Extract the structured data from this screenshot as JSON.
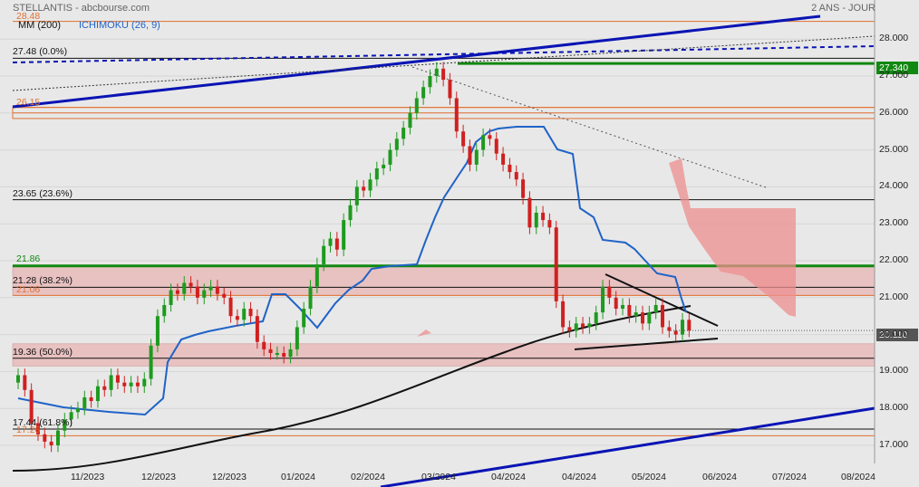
{
  "header": {
    "title": "STELLANTIS - abcbourse.com",
    "period": "2 ANS - JOUR",
    "legend_ma": "MM (200)",
    "legend_ichimoku": "ICHIMOKU (26, 9)"
  },
  "colors": {
    "up": "#1e9a1e",
    "down": "#d02020",
    "ichimoku": "#1f63c8",
    "ma": "#111111",
    "trend": "#0a14b4",
    "green_level": "#118811",
    "band": "#e8b5b5",
    "cloud": "#ee8f8f"
  },
  "price_tags": {
    "last": "20.110",
    "green": "27.340"
  },
  "chart_data": {
    "type": "candlestick",
    "y_ticks": [
      "28.000",
      "27.000",
      "26.000",
      "25.000",
      "24.000",
      "23.000",
      "22.000",
      "21.000",
      "20.000",
      "19.000",
      "18.000",
      "17.000"
    ],
    "x_ticks": [
      "11/2023",
      "12/2023",
      "12/2023",
      "01/2024",
      "02/2024",
      "03/2024",
      "04/2024",
      "04/2024",
      "05/2024",
      "06/2024",
      "07/2024",
      "08/2024"
    ],
    "levels": [
      {
        "label": "27.48  (0.0%)",
        "value": 27.48
      },
      {
        "label": "23.65  (23.6%)",
        "value": 23.65
      },
      {
        "label": "21.28  (38.2%)",
        "value": 21.28
      },
      {
        "label": "19.36  (50.0%)",
        "value": 19.36
      },
      {
        "label": "17.44  (61.8%)",
        "value": 17.44
      }
    ],
    "orange_labels": [
      "28.48",
      "26.15",
      "21.06",
      "17.26"
    ],
    "green_label": "21.86",
    "last_price": 20.11,
    "closes": [
      18.9,
      18.5,
      17.6,
      17.3,
      17.1,
      17.0,
      17.4,
      17.7,
      17.9,
      18.0,
      18.3,
      18.2,
      18.6,
      18.5,
      18.9,
      18.7,
      18.6,
      18.7,
      18.6,
      18.8,
      19.7,
      20.5,
      20.8,
      21.2,
      21.1,
      21.4,
      21.3,
      21.0,
      21.2,
      21.3,
      21.1,
      21.0,
      20.5,
      20.4,
      20.7,
      20.5,
      19.8,
      19.6,
      19.5,
      19.5,
      19.4,
      19.6,
      20.2,
      20.7,
      21.3,
      21.9,
      22.4,
      22.6,
      22.3,
      23.1,
      23.5,
      24.0,
      23.9,
      24.2,
      24.5,
      24.6,
      25.0,
      25.3,
      25.6,
      26.0,
      26.4,
      26.7,
      27.0,
      27.2,
      26.9,
      26.4,
      25.5,
      25.1,
      24.6,
      25.0,
      25.4,
      25.3,
      24.9,
      24.6,
      24.4,
      24.2,
      23.7,
      22.9,
      23.3,
      23.1,
      22.9,
      20.9,
      20.2,
      20.1,
      20.3,
      20.2,
      20.3,
      20.6,
      21.3,
      21.0,
      20.7,
      20.8,
      20.5,
      20.6,
      20.3,
      20.6,
      20.8,
      20.2,
      20.1,
      20.0,
      20.4,
      20.11
    ]
  }
}
